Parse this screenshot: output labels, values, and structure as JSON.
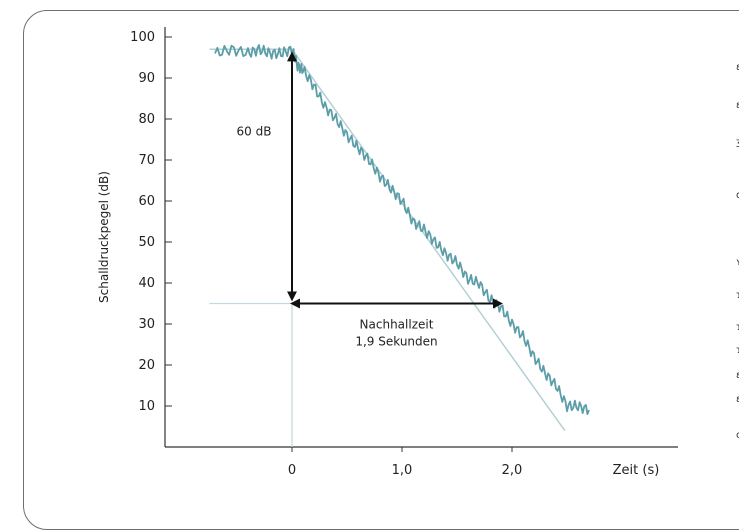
{
  "chart_data": {
    "type": "line",
    "ylabel": "Schalldruckpegel (dB)",
    "xlabel": "Zeit (s)",
    "xlim": [
      -0.75,
      2.75
    ],
    "ylim": [
      0,
      100
    ],
    "x_ticks": [
      {
        "value": 0,
        "label": "0"
      },
      {
        "value": 1.0,
        "label": "1,0"
      },
      {
        "value": 2.0,
        "label": "2,0"
      }
    ],
    "y_ticks": [
      10,
      20,
      30,
      40,
      50,
      60,
      70,
      80,
      90,
      100
    ],
    "series": [
      {
        "style": "measured",
        "color": "#5b9ea8",
        "x": [
          -0.7,
          -0.55,
          -0.4,
          -0.3,
          -0.2,
          -0.1,
          0,
          0.05,
          0.1,
          0.2,
          0.3,
          0.4,
          0.5,
          0.6,
          0.7,
          0.8,
          0.9,
          1.0,
          1.1,
          1.2,
          1.3,
          1.4,
          1.5,
          1.6,
          1.7,
          1.8,
          1.9,
          2.0,
          2.1,
          2.2,
          2.3,
          2.4,
          2.5,
          2.6,
          2.7
        ],
        "y": [
          96,
          97,
          96,
          97,
          96,
          96,
          97,
          93,
          92,
          88,
          83,
          80,
          76,
          73,
          70,
          66,
          63,
          60,
          55,
          53,
          50,
          47,
          45,
          41,
          40,
          36,
          34,
          30,
          27,
          22,
          18,
          15,
          10,
          10,
          9
        ]
      },
      {
        "style": "regression",
        "color": "#b5cfd4",
        "x": [
          -0.75,
          0,
          2.48
        ],
        "y": [
          97,
          97,
          4
        ]
      }
    ],
    "reference_lines": [
      {
        "orientation": "horizontal",
        "y": 35,
        "x_from": -0.75,
        "x_to": 1.9
      },
      {
        "orientation": "vertical",
        "x": 0,
        "y_from": 0,
        "y_to": 35
      }
    ],
    "annotations": {
      "vertical_arrow": {
        "x": 0,
        "y_from": 96,
        "y_to": 36,
        "label": "60 dB"
      },
      "horizontal_arrow": {
        "y": 35,
        "x_from": 0,
        "x_to": 1.9,
        "label_line1": "Nachhallzeit",
        "label_line2": "1,9 Sekunden"
      }
    }
  },
  "margin_marks": [
    "ɛ",
    "ɛ",
    "ʒ",
    "ǆ",
    "ʏ",
    "ɿ",
    "ɿ",
    "ɿ",
    "ɛ",
    "ɛ",
    "c"
  ]
}
